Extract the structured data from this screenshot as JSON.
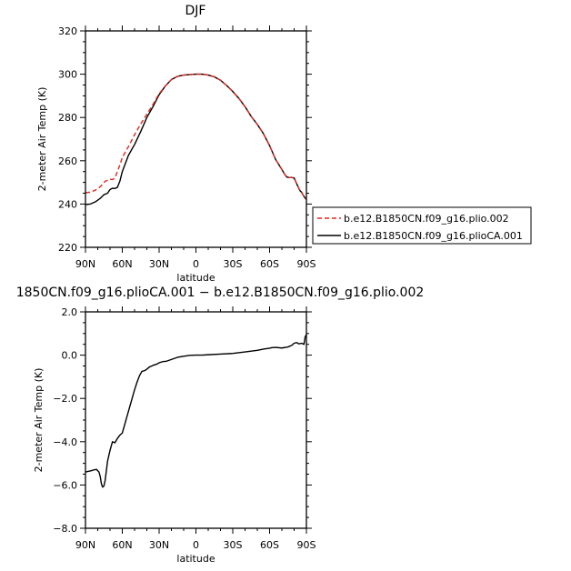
{
  "chart_data": [
    {
      "type": "line",
      "title": "DJF",
      "xlabel": "latitude",
      "ylabel": "2-meter Air Temp (K)",
      "xlim": [
        90,
        -90
      ],
      "ylim": [
        220,
        320
      ],
      "x_ticks": [
        {
          "value": 90,
          "label": "90N"
        },
        {
          "value": 60,
          "label": "60N"
        },
        {
          "value": 30,
          "label": "30N"
        },
        {
          "value": 0,
          "label": "0"
        },
        {
          "value": -30,
          "label": "30S"
        },
        {
          "value": -60,
          "label": "60S"
        },
        {
          "value": -90,
          "label": "90S"
        }
      ],
      "y_ticks": [
        {
          "value": 220,
          "label": "220"
        },
        {
          "value": 240,
          "label": "240"
        },
        {
          "value": 260,
          "label": "260"
        },
        {
          "value": 280,
          "label": "280"
        },
        {
          "value": 300,
          "label": "300"
        },
        {
          "value": 320,
          "label": "320"
        }
      ],
      "legend_position": "right",
      "series": [
        {
          "name": "b.e12.B1850CN.f09_g16.plio.002",
          "color": "#e0261c",
          "dash": "dashed",
          "x": [
            90,
            85,
            80,
            77,
            74,
            72,
            70,
            68,
            66,
            64,
            62,
            60,
            55,
            50,
            45,
            40,
            35,
            30,
            25,
            20,
            15,
            10,
            5,
            0,
            -5,
            -10,
            -15,
            -20,
            -25,
            -30,
            -35,
            -40,
            -45,
            -50,
            -55,
            -60,
            -65,
            -70,
            -72,
            -74,
            -76,
            -78,
            -80,
            -82,
            -84,
            -85,
            -86,
            -88,
            -90
          ],
          "y": [
            245.2,
            245.6,
            247.0,
            248.5,
            250.5,
            251.0,
            251.5,
            251.3,
            252.0,
            255.0,
            258.0,
            261.5,
            266.5,
            272.0,
            277.0,
            281.5,
            286.0,
            291.0,
            294.5,
            297.5,
            299.0,
            299.6,
            299.8,
            300.0,
            300.0,
            299.6,
            298.8,
            297.2,
            294.8,
            292.0,
            288.8,
            285.0,
            280.5,
            276.8,
            272.5,
            267.0,
            260.5,
            256.0,
            254.0,
            252.5,
            252.2,
            252.3,
            252.0,
            249.5,
            247.0,
            246.0,
            245.5,
            243.5,
            242.0
          ]
        },
        {
          "name": "b.e12.B1850CN.f09_g16.plioCA.001",
          "color": "#000000",
          "dash": "solid",
          "x": [
            90,
            86,
            82,
            78,
            75,
            72,
            70,
            68,
            66,
            64,
            62,
            60,
            55,
            50,
            45,
            40,
            35,
            30,
            25,
            20,
            15,
            10,
            5,
            0,
            -5,
            -10,
            -15,
            -20,
            -25,
            -30,
            -35,
            -40,
            -45,
            -50,
            -55,
            -60,
            -65,
            -70,
            -72,
            -74,
            -76,
            -78,
            -80,
            -82,
            -84,
            -85,
            -86,
            -88,
            -90
          ],
          "y": [
            239.8,
            240.0,
            241.0,
            242.6,
            244.3,
            245.0,
            246.7,
            247.3,
            247.2,
            247.7,
            250.5,
            255.0,
            262.5,
            267.5,
            273.5,
            280.0,
            285.0,
            290.5,
            294.5,
            297.5,
            299.0,
            299.6,
            299.8,
            300.0,
            300.0,
            299.6,
            298.8,
            297.2,
            294.8,
            292.0,
            288.8,
            285.0,
            280.5,
            276.8,
            272.5,
            267.0,
            260.5,
            256.0,
            254.0,
            252.5,
            252.2,
            252.3,
            252.0,
            249.5,
            247.0,
            246.0,
            245.5,
            243.5,
            242.0
          ]
        }
      ]
    },
    {
      "type": "line",
      "title": "1850CN.f09_g16.plioCA.001 − b.e12.B1850CN.f09_g16.plio.002",
      "xlabel": "latitude",
      "ylabel": "2-meter Air Temp (K)",
      "xlim": [
        90,
        -90
      ],
      "ylim": [
        -8.0,
        2.0
      ],
      "x_ticks": [
        {
          "value": 90,
          "label": "90N"
        },
        {
          "value": 60,
          "label": "60N"
        },
        {
          "value": 30,
          "label": "30N"
        },
        {
          "value": 0,
          "label": "0"
        },
        {
          "value": -30,
          "label": "30S"
        },
        {
          "value": -60,
          "label": "60S"
        },
        {
          "value": -90,
          "label": "90S"
        }
      ],
      "y_ticks": [
        {
          "value": -8.0,
          "label": "−8.0"
        },
        {
          "value": -6.0,
          "label": "−6.0"
        },
        {
          "value": -4.0,
          "label": "−4.0"
        },
        {
          "value": -2.0,
          "label": "−2.0"
        },
        {
          "value": 0.0,
          "label": "0.0"
        },
        {
          "value": 2.0,
          "label": "2.0"
        }
      ],
      "series": [
        {
          "color": "#000000",
          "dash": "solid",
          "x": [
            90,
            86,
            83,
            81,
            79,
            78,
            77,
            76,
            75,
            74,
            72,
            70,
            68,
            66,
            64,
            62,
            60,
            58,
            56,
            54,
            52,
            50,
            48,
            46,
            44,
            42,
            40,
            38,
            36,
            34,
            32,
            30,
            27,
            24,
            20,
            15,
            10,
            5,
            0,
            -5,
            -10,
            -20,
            -30,
            -40,
            -50,
            -55,
            -60,
            -62,
            -65,
            -70,
            -75,
            -78,
            -80,
            -82,
            -84,
            -86,
            -88,
            -89,
            -90
          ],
          "y": [
            -5.4,
            -5.35,
            -5.3,
            -5.28,
            -5.4,
            -5.6,
            -5.95,
            -6.1,
            -6.05,
            -5.8,
            -4.9,
            -4.4,
            -4.0,
            -4.05,
            -3.85,
            -3.7,
            -3.6,
            -3.2,
            -2.8,
            -2.4,
            -2.0,
            -1.6,
            -1.25,
            -0.95,
            -0.75,
            -0.72,
            -0.65,
            -0.55,
            -0.5,
            -0.45,
            -0.42,
            -0.35,
            -0.3,
            -0.28,
            -0.2,
            -0.1,
            -0.05,
            -0.01,
            0.0,
            0.0,
            0.02,
            0.05,
            0.08,
            0.15,
            0.22,
            0.28,
            0.32,
            0.35,
            0.36,
            0.33,
            0.38,
            0.45,
            0.55,
            0.58,
            0.52,
            0.55,
            0.5,
            0.85,
            0.95
          ]
        }
      ]
    }
  ]
}
